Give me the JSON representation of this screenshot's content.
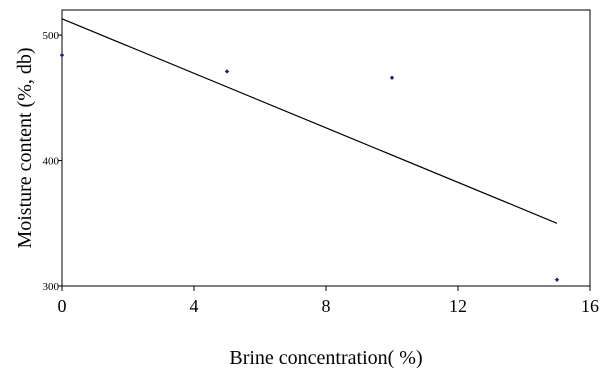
{
  "chart_data": {
    "type": "scatter",
    "title": "",
    "xlabel": "Brine concentration( %)",
    "ylabel": "Moisture content (%, db)",
    "xlim": [
      0,
      16
    ],
    "ylim": [
      300,
      520
    ],
    "x_ticks": [
      "0",
      "4",
      "8",
      "12",
      "16"
    ],
    "y_ticks": [
      "300",
      "400",
      "500"
    ],
    "grid": false,
    "series": [
      {
        "points": [
          {
            "x": 0,
            "y": 484
          },
          {
            "x": 5,
            "y": 471
          },
          {
            "x": 10,
            "y": 466
          },
          {
            "x": 15,
            "y": 305
          }
        ],
        "marker": "diamond",
        "color": "#1a237e"
      }
    ],
    "trendline": {
      "type": "linear",
      "from": {
        "x": 0,
        "y": 513
      },
      "to": {
        "x": 15,
        "y": 350
      },
      "color": "#000000"
    }
  }
}
